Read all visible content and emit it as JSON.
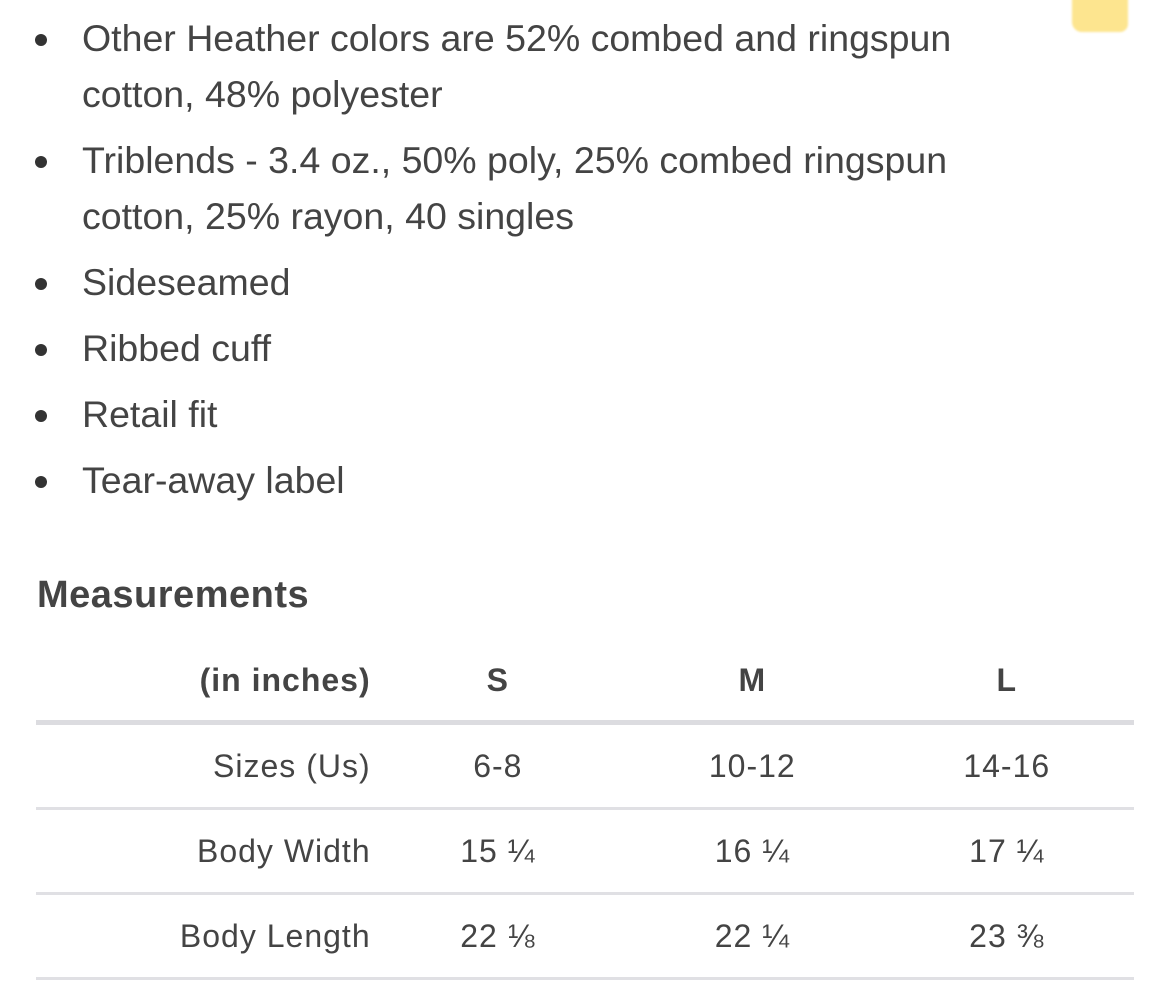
{
  "features": [
    "Other Heather colors are 52% combed and ringspun cotton, 48% polyester",
    "Triblends - 3.4 oz., 50% poly, 25% combed ringspun cotton, 25% rayon, 40 singles",
    "Sideseamed",
    "Ribbed cuff",
    "Retail fit",
    "Tear-away label"
  ],
  "measurements": {
    "title": "Measurements",
    "header": [
      "(in inches)",
      "S",
      "M",
      "L"
    ],
    "rows": [
      [
        "Sizes (Us)",
        "6-8",
        "10-12",
        "14-16"
      ],
      [
        "Body Width",
        "15 ¼",
        "16 ¼",
        "17 ¼"
      ],
      [
        "Body Length",
        "22 ⅛",
        "22 ¼",
        "23 ⅜"
      ]
    ]
  },
  "colors": {
    "text": "#444444",
    "divider": "#dcdce0",
    "sticky_note": "#fde58f"
  }
}
